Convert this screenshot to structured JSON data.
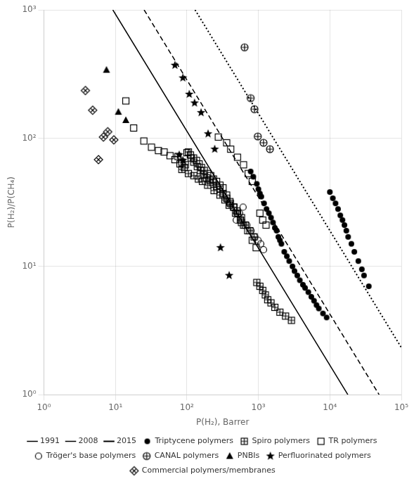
{
  "chart_data": {
    "type": "scatter",
    "xlabel": "P(H₂), Barrer",
    "ylabel": "P(H₂)/P(CH₄)",
    "log": true,
    "grid": true,
    "legend": "bottom",
    "xlim": [
      1,
      100000
    ],
    "ylim": [
      1,
      1000
    ],
    "xticks": [
      {
        "value": 1,
        "label": "10⁰"
      },
      {
        "value": 10,
        "label": "10¹"
      },
      {
        "value": 100,
        "label": "10²"
      },
      {
        "value": 1000,
        "label": "10³"
      },
      {
        "value": 10000,
        "label": "10⁴"
      },
      {
        "value": 100000,
        "label": "10⁵"
      }
    ],
    "yticks": [
      {
        "value": 1,
        "label": "10⁰"
      },
      {
        "value": 10,
        "label": "10¹"
      },
      {
        "value": 100,
        "label": "10²"
      },
      {
        "value": 1000,
        "label": "10³"
      }
    ],
    "series": [
      {
        "name": "1991",
        "type": "line",
        "line_style": "solid",
        "color": "#000000",
        "values": [
          [
            9.2049,
            1000
          ],
          [
            17852,
            1
          ]
        ]
      },
      {
        "name": "2008",
        "type": "line",
        "line_style": "dashed",
        "color": "#000000",
        "values": [
          [
            25.198,
            1000
          ],
          [
            48870,
            1
          ]
        ]
      },
      {
        "name": "2015",
        "type": "line",
        "line_style": "dotted",
        "color": "#000000",
        "values": [
          [
            130.15,
            1000
          ],
          [
            100000,
            2.3277
          ]
        ]
      },
      {
        "name": "Triptycene polymers",
        "type": "scatter",
        "marker": "filled_circle",
        "color": "#000000",
        "values": [
          [
            780,
            55
          ],
          [
            850,
            50
          ],
          [
            950,
            44
          ],
          [
            1000,
            40
          ],
          [
            1050,
            37
          ],
          [
            1100,
            35
          ],
          [
            1200,
            31
          ],
          [
            1300,
            28
          ],
          [
            1400,
            26
          ],
          [
            1500,
            24
          ],
          [
            1600,
            22
          ],
          [
            1700,
            20
          ],
          [
            1800,
            19
          ],
          [
            1900,
            17
          ],
          [
            2000,
            16
          ],
          [
            2100,
            15
          ],
          [
            2300,
            13
          ],
          [
            2500,
            12
          ],
          [
            2700,
            11
          ],
          [
            3000,
            10
          ],
          [
            3200,
            9.2
          ],
          [
            3500,
            8.5
          ],
          [
            3800,
            7.8
          ],
          [
            4200,
            7.2
          ],
          [
            4500,
            6.8
          ],
          [
            5000,
            6.3
          ],
          [
            5500,
            5.8
          ],
          [
            6000,
            5.4
          ],
          [
            6500,
            5.0
          ],
          [
            7000,
            4.7
          ],
          [
            8000,
            4.3
          ],
          [
            9000,
            4.0
          ],
          [
            10000,
            38
          ],
          [
            11000,
            34
          ],
          [
            12000,
            31
          ],
          [
            13000,
            28
          ],
          [
            14000,
            25
          ],
          [
            15000,
            23
          ],
          [
            16000,
            21
          ],
          [
            17000,
            19
          ],
          [
            18000,
            17
          ],
          [
            20000,
            15
          ],
          [
            22000,
            13
          ],
          [
            25000,
            11
          ],
          [
            28000,
            9.5
          ],
          [
            30000,
            8.5
          ],
          [
            35000,
            7
          ]
        ]
      },
      {
        "name": "Spiro polymers",
        "type": "scatter",
        "marker": "square_plus",
        "color": "#000000",
        "values": [
          [
            75,
            72
          ],
          [
            85,
            65
          ],
          [
            95,
            62
          ],
          [
            105,
            78
          ],
          [
            115,
            70
          ],
          [
            125,
            65
          ],
          [
            140,
            60
          ],
          [
            155,
            56
          ],
          [
            170,
            52
          ],
          [
            190,
            49
          ],
          [
            210,
            47
          ],
          [
            230,
            45
          ],
          [
            260,
            42
          ],
          [
            290,
            40
          ],
          [
            320,
            37
          ],
          [
            360,
            34
          ],
          [
            400,
            32
          ],
          [
            450,
            29
          ],
          [
            500,
            27
          ],
          [
            580,
            24
          ],
          [
            660,
            21
          ],
          [
            760,
            19
          ],
          [
            870,
            17
          ],
          [
            950,
            7.5
          ],
          [
            1050,
            7.0
          ],
          [
            1150,
            6.5
          ],
          [
            1250,
            6.0
          ],
          [
            1350,
            5.5
          ],
          [
            1500,
            5.2
          ],
          [
            1700,
            4.8
          ],
          [
            2000,
            4.4
          ],
          [
            2400,
            4.1
          ],
          [
            2900,
            3.8
          ],
          [
            85,
            57
          ],
          [
            105,
            53
          ],
          [
            125,
            51
          ],
          [
            145,
            48
          ],
          [
            165,
            46
          ],
          [
            195,
            43
          ],
          [
            240,
            39
          ],
          [
            290,
            36
          ],
          [
            340,
            33
          ],
          [
            390,
            30
          ],
          [
            480,
            26
          ],
          [
            580,
            22
          ]
        ]
      },
      {
        "name": "TR polymers",
        "type": "scatter",
        "marker": "open_square",
        "color": "#000000",
        "values": [
          [
            14,
            195
          ],
          [
            18,
            120
          ],
          [
            25,
            95
          ],
          [
            32,
            85
          ],
          [
            40,
            80
          ],
          [
            48,
            78
          ],
          [
            58,
            73
          ],
          [
            68,
            68
          ],
          [
            80,
            63
          ],
          [
            92,
            59
          ],
          [
            100,
            77
          ],
          [
            112,
            74
          ],
          [
            124,
            70
          ],
          [
            136,
            67
          ],
          [
            148,
            63
          ],
          [
            160,
            59
          ],
          [
            175,
            56
          ],
          [
            195,
            53
          ],
          [
            215,
            51
          ],
          [
            235,
            48
          ],
          [
            260,
            46
          ],
          [
            290,
            43
          ],
          [
            320,
            41
          ],
          [
            360,
            36
          ],
          [
            405,
            31
          ],
          [
            455,
            29
          ],
          [
            510,
            26
          ],
          [
            560,
            23
          ],
          [
            620,
            21
          ],
          [
            710,
            19
          ],
          [
            820,
            16
          ],
          [
            930,
            14
          ],
          [
            1050,
            26
          ],
          [
            1150,
            23
          ],
          [
            1280,
            21
          ],
          [
            410,
            82
          ],
          [
            510,
            71
          ],
          [
            620,
            62
          ],
          [
            720,
            53
          ],
          [
            820,
            46
          ],
          [
            360,
            92
          ],
          [
            275,
            102
          ]
        ]
      },
      {
        "name": "Tröger's base polymers",
        "type": "scatter",
        "marker": "open_circle",
        "color": "#000000",
        "values": [
          [
            490,
            23
          ],
          [
            545,
            26
          ],
          [
            610,
            29
          ],
          [
            690,
            21
          ],
          [
            790,
            19
          ],
          [
            890,
            17
          ],
          [
            990,
            16
          ],
          [
            1080,
            15
          ],
          [
            1180,
            13.5
          ]
        ]
      },
      {
        "name": "CANAL polymers",
        "type": "scatter",
        "marker": "circle_plus",
        "color": "#000000",
        "values": [
          [
            640,
            510
          ],
          [
            780,
            205
          ],
          [
            880,
            168
          ],
          [
            980,
            103
          ],
          [
            1180,
            92
          ],
          [
            1450,
            82
          ]
        ]
      },
      {
        "name": "PNBIs",
        "type": "scatter",
        "marker": "filled_triangle",
        "color": "#000000",
        "values": [
          [
            7.5,
            340
          ],
          [
            11,
            160
          ],
          [
            14,
            138
          ]
        ]
      },
      {
        "name": "Perfluorinated polymers",
        "type": "scatter",
        "marker": "filled_star",
        "color": "#000000",
        "values": [
          [
            68,
            370
          ],
          [
            88,
            295
          ],
          [
            108,
            220
          ],
          [
            128,
            188
          ],
          [
            158,
            158
          ],
          [
            198,
            108
          ],
          [
            245,
            82
          ],
          [
            78,
            74
          ],
          [
            88,
            67
          ],
          [
            295,
            14
          ],
          [
            390,
            8.5
          ]
        ]
      },
      {
        "name": "Commercial polymers/membranes",
        "type": "scatter",
        "marker": "diamond_x",
        "color": "#000000",
        "values": [
          [
            3.8,
            235
          ],
          [
            4.8,
            165
          ],
          [
            5.8,
            68
          ],
          [
            6.8,
            102
          ],
          [
            7.8,
            112
          ],
          [
            9.5,
            97
          ]
        ]
      }
    ]
  }
}
